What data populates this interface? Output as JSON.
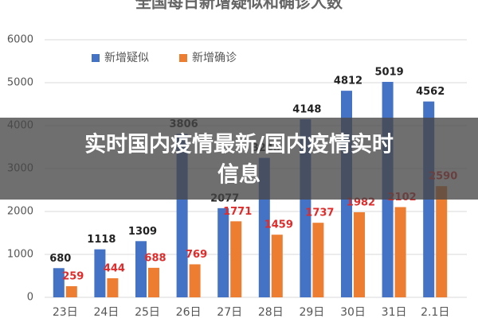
{
  "banner": {
    "lines": [
      "实时国内疫情最新/国内疫情实时",
      "信息"
    ]
  },
  "chart_data": {
    "type": "bar",
    "title": "全国每日新增疑似和确诊人数",
    "categories": [
      "23日",
      "24日",
      "25日",
      "26日",
      "27日",
      "28日",
      "29日",
      "30日",
      "31日",
      "2.1日"
    ],
    "series": [
      {
        "name": "新增疑似",
        "color": "#4472c4",
        "label_color": "#222222",
        "values": [
          680,
          1118,
          1309,
          3806,
          2077,
          3248,
          4148,
          4812,
          5019,
          4562
        ]
      },
      {
        "name": "新增确诊",
        "color": "#ed7d31",
        "label_color": "#e02b2b",
        "values": [
          259,
          444,
          688,
          769,
          1771,
          1459,
          1737,
          1982,
          2102,
          2590
        ]
      }
    ],
    "ylim": [
      0,
      6000
    ],
    "yticks": [
      0,
      1000,
      2000,
      3000,
      4000,
      5000,
      6000
    ],
    "grid": true,
    "legend": "top-left"
  }
}
